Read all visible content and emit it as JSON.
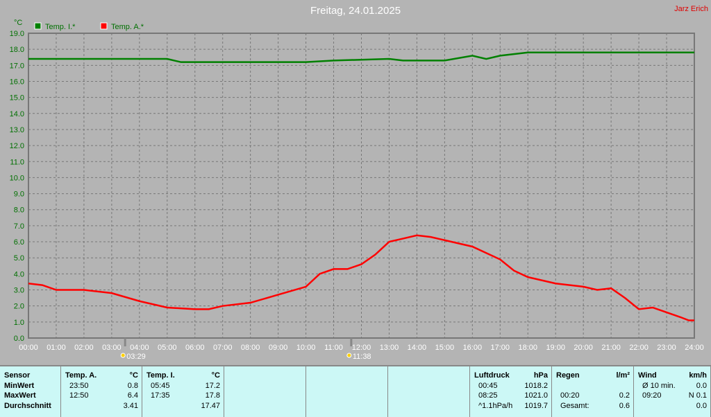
{
  "header": {
    "title": "Freitag, 24.01.2025",
    "author": "Jarz Erich"
  },
  "chart_data": {
    "type": "line",
    "title": "Freitag, 24.01.2025",
    "ylabel": "°C",
    "ylim": [
      0,
      19
    ],
    "xlim": [
      "00:00",
      "24:00"
    ],
    "grid": true,
    "legend": "top-left",
    "yticks": [
      "0.0",
      "1.0",
      "2.0",
      "3.0",
      "4.0",
      "5.0",
      "6.0",
      "7.0",
      "8.0",
      "9.0",
      "10.0",
      "11.0",
      "12.0",
      "13.0",
      "14.0",
      "15.0",
      "16.0",
      "17.0",
      "18.0",
      "19.0"
    ],
    "xticks": [
      "00:00",
      "01:00",
      "02:00",
      "03:00",
      "04:00",
      "05:00",
      "06:00",
      "07:00",
      "08:00",
      "09:00",
      "10:00",
      "11:00",
      "12:00",
      "13:00",
      "14:00",
      "15:00",
      "16:00",
      "17:00",
      "18:00",
      "19:00",
      "20:00",
      "21:00",
      "22:00",
      "23:00",
      "24:00"
    ],
    "markers": [
      {
        "label": "03:29",
        "icon": "sunrise-icon"
      },
      {
        "label": "11:38",
        "icon": "sunset-icon"
      }
    ],
    "series": [
      {
        "name": "Temp. I.*",
        "color": "#008000",
        "x": [
          0,
          5,
          5.5,
          7,
          10,
          11,
          13,
          13.5,
          15,
          16,
          16.5,
          17,
          18,
          24
        ],
        "y": [
          17.4,
          17.4,
          17.2,
          17.2,
          17.2,
          17.3,
          17.4,
          17.3,
          17.3,
          17.6,
          17.4,
          17.6,
          17.8,
          17.8
        ]
      },
      {
        "name": "Temp. A.*",
        "color": "#ff0000",
        "x": [
          0,
          0.5,
          1,
          2,
          3,
          4,
          5,
          6,
          6.5,
          7,
          8,
          9,
          10,
          10.5,
          11,
          11.5,
          12,
          12.5,
          13,
          13.5,
          14,
          14.5,
          15,
          16,
          17,
          17.5,
          18,
          19,
          20,
          20.5,
          21,
          21.5,
          22,
          22.5,
          23,
          23.5,
          23.8,
          24
        ],
        "y": [
          3.4,
          3.3,
          3.0,
          3.0,
          2.8,
          2.3,
          1.9,
          1.8,
          1.8,
          2.0,
          2.2,
          2.7,
          3.2,
          4.0,
          4.3,
          4.3,
          4.6,
          5.2,
          6.0,
          6.2,
          6.4,
          6.3,
          6.1,
          5.7,
          4.9,
          4.2,
          3.8,
          3.4,
          3.2,
          3.0,
          3.1,
          2.5,
          1.8,
          1.9,
          1.6,
          1.3,
          1.1,
          1.1
        ]
      }
    ]
  },
  "table": {
    "sensor": {
      "title": "Sensor",
      "rows": [
        "MinWert",
        "MaxWert",
        "Durchschnitt"
      ]
    },
    "tempA": {
      "title": "Temp. A.",
      "unit": "°C",
      "rows": [
        [
          "23:50",
          "0.8"
        ],
        [
          "12:50",
          "6.4"
        ],
        [
          "",
          "3.41"
        ]
      ]
    },
    "tempI": {
      "title": "Temp. I.",
      "unit": "°C",
      "rows": [
        [
          "05:45",
          "17.2"
        ],
        [
          "17:35",
          "17.8"
        ],
        [
          "",
          "17.47"
        ]
      ]
    },
    "luftdruck": {
      "title": "Luftdruck",
      "unit": "hPa",
      "rows": [
        [
          "00:45",
          "1018.2"
        ],
        [
          "08:25",
          "1021.0"
        ],
        [
          "^1.1hPa/h",
          "1019.7"
        ]
      ]
    },
    "regen": {
      "title": "Regen",
      "unit": "l/m²",
      "rows": [
        [
          "",
          ""
        ],
        [
          "00:20",
          "0.2"
        ],
        [
          "Gesamt:",
          "0.6"
        ]
      ]
    },
    "wind": {
      "title": "Wind",
      "unit": "km/h",
      "rows": [
        [
          "Ø 10 min.",
          "0.0"
        ],
        [
          "09:20",
          "N 0.1"
        ],
        [
          "",
          "0.0"
        ]
      ]
    }
  }
}
